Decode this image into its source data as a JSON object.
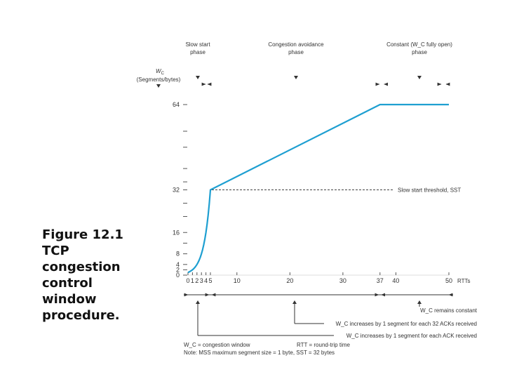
{
  "caption": {
    "lines": [
      "Figure 12.1",
      "TCP",
      "congestion",
      "control",
      "window",
      "procedure."
    ]
  },
  "chart_data": {
    "type": "line",
    "title": "TCP congestion control window procedure",
    "xlabel": "RTTs",
    "ylabel": "W_C (Segments/bytes)",
    "y_axis_symbol": "W",
    "y_axis_subscript": "C",
    "y_axis_unit": "(Segments/bytes)",
    "xlim": [
      0,
      50
    ],
    "ylim": [
      0,
      70
    ],
    "x_ticks": [
      0,
      1,
      2,
      3,
      4,
      5,
      10,
      20,
      30,
      37,
      40,
      50
    ],
    "x_tick_labels": [
      "0",
      "1",
      "2",
      "3",
      "4",
      "5",
      "10",
      "20",
      "30",
      "37",
      "40",
      "50"
    ],
    "y_ticks": [
      0,
      2,
      4,
      8,
      16,
      32,
      64
    ],
    "y_tick_labels": [
      "0",
      "2",
      "4",
      "8",
      "16",
      "32",
      "64"
    ],
    "series": [
      {
        "name": "W_C",
        "color": "#1e9fd1",
        "x": [
          0,
          1,
          2,
          3,
          4,
          5,
          37,
          50
        ],
        "y": [
          1,
          2,
          4,
          8,
          16,
          32,
          64,
          64
        ]
      }
    ],
    "threshold": {
      "y": 32,
      "label": "Slow start threshold, SST"
    },
    "phases": [
      {
        "label_lines": [
          "Slow start",
          "phase"
        ],
        "x_start": 0,
        "x_end": 5
      },
      {
        "label_lines": [
          "Congestion avoidance",
          "phase"
        ],
        "x_start": 5,
        "x_end": 37
      },
      {
        "label_lines": [
          "Constant (W_C fully open)",
          "phase"
        ],
        "x_start": 37,
        "x_end": 50
      }
    ],
    "legend_notes": [
      "W_C remains constant",
      "W_C increases by 1 segment for each 32 ACKs received",
      "W_C increases by 1 segment for each ACK received"
    ],
    "footnotes": [
      "W_C = congestion window",
      "RTT = round-trip time",
      "Note: MSS maximum segment size = 1 byte, SST = 32 bytes"
    ]
  }
}
